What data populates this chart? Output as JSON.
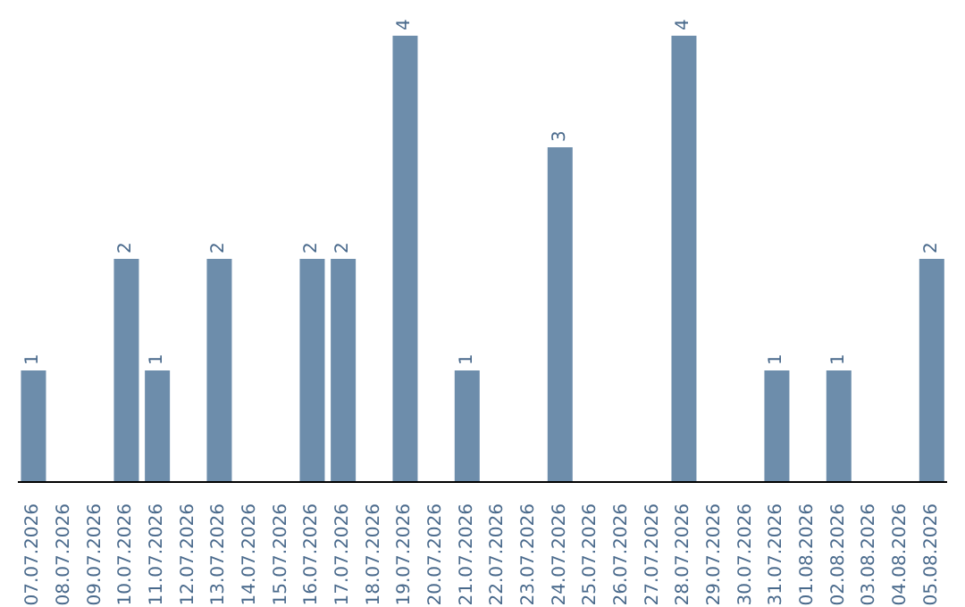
{
  "chart_data": {
    "type": "bar",
    "categories": [
      "07.07.2026",
      "08.07.2026",
      "09.07.2026",
      "10.07.2026",
      "11.07.2026",
      "12.07.2026",
      "13.07.2026",
      "14.07.2026",
      "15.07.2026",
      "16.07.2026",
      "17.07.2026",
      "18.07.2026",
      "19.07.2026",
      "20.07.2026",
      "21.07.2026",
      "22.07.2026",
      "23.07.2026",
      "24.07.2026",
      "25.07.2026",
      "26.07.2026",
      "27.07.2026",
      "28.07.2026",
      "29.07.2026",
      "30.07.2026",
      "31.07.2026",
      "01.08.2026",
      "02.08.2026",
      "03.08.2026",
      "04.08.2026",
      "05.08.2026"
    ],
    "values": [
      1,
      0,
      0,
      2,
      1,
      0,
      2,
      0,
      0,
      2,
      2,
      0,
      4,
      0,
      1,
      0,
      0,
      3,
      0,
      0,
      0,
      4,
      0,
      0,
      1,
      0,
      1,
      0,
      0,
      2
    ],
    "value_labels": [
      "1",
      null,
      null,
      "2",
      "1",
      null,
      "2",
      null,
      null,
      "2",
      "2",
      null,
      "4",
      null,
      "1",
      null,
      null,
      "3",
      null,
      null,
      null,
      "4",
      null,
      null,
      "1",
      null,
      "1",
      null,
      null,
      "2"
    ],
    "color": "#6d8dab",
    "tick_labels": "x"
  }
}
